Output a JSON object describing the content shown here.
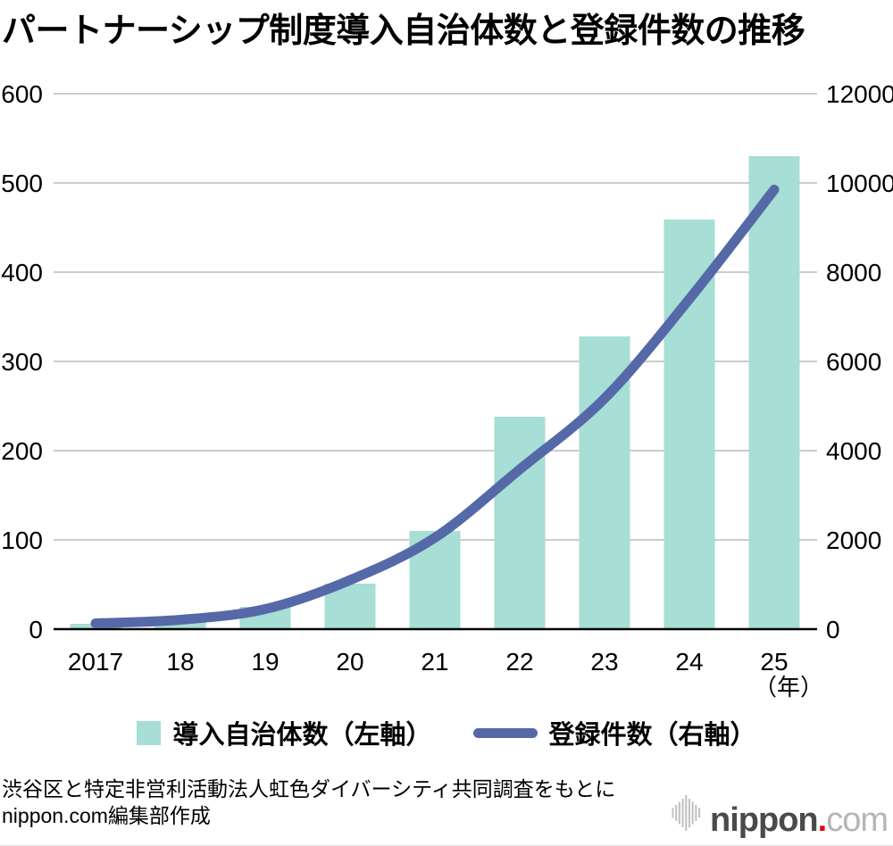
{
  "title": "パートナーシップ制度導入自治体数と登録件数の推移",
  "legend": {
    "bar_label": "導入自治体数（左軸）",
    "line_label": "登録件数（右軸）"
  },
  "footer": {
    "source_line1": "渋谷区と特定非営利活動法人虹色ダイバーシティ共同調査をもとに",
    "source_line2": "nippon.com編集部作成"
  },
  "logo": {
    "name_bold": "nippon",
    "dot": ".",
    "name_light": "com"
  },
  "colors": {
    "bar": "#a7ded5",
    "line": "#5569a8",
    "grid": "#cccccc",
    "axis": "#000000",
    "logo_dark": "#4a4a4a",
    "logo_light": "#b5b5b5",
    "logo_dot": "#e60012",
    "logo_icon": "#c2c2c2"
  },
  "chart_data": {
    "type": "bar",
    "subtype": "bar+line combo, dual axis",
    "title": "パートナーシップ制度導入自治体数と登録件数の推移",
    "categories": [
      "2017",
      "18",
      "19",
      "20",
      "21",
      "22",
      "23",
      "24",
      "25"
    ],
    "x_unit_label": "（年）",
    "series": [
      {
        "name": "導入自治体数（左軸）",
        "type": "bar",
        "axis": "left",
        "values": [
          6,
          9,
          25,
          51,
          110,
          238,
          328,
          459,
          530
        ]
      },
      {
        "name": "登録件数（右軸）",
        "type": "line",
        "axis": "right",
        "values": [
          130,
          210,
          450,
          1100,
          2050,
          3580,
          5170,
          7400,
          9850
        ]
      }
    ],
    "left_axis": {
      "min": 0,
      "max": 600,
      "step": 100,
      "ticks": [
        0,
        100,
        200,
        300,
        400,
        500,
        600
      ]
    },
    "right_axis": {
      "min": 0,
      "max": 12000,
      "step": 2000,
      "ticks": [
        0,
        2000,
        4000,
        6000,
        8000,
        10000,
        12000
      ]
    },
    "grid": true,
    "legend_position": "bottom"
  }
}
